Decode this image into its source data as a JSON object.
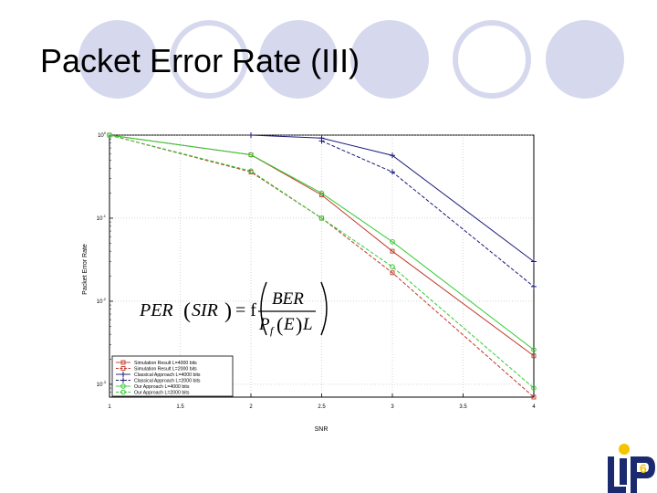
{
  "slide": {
    "title": "Packet Error Rate (III)",
    "page_number": "6",
    "logo_text": "LIP"
  },
  "colors": {
    "circle": "#d6d8ee",
    "simulation": "#c0392b",
    "classical": "#1a1a7a",
    "ours": "#33cc33"
  },
  "formula": {
    "lhs": "PER",
    "arg": "SIR",
    "eq": "= f",
    "numerator": "BER",
    "denom_p": "P",
    "denom_sub": "f",
    "denom_arg": "E",
    "denom_l": "L"
  },
  "chart_data": {
    "type": "line",
    "xlabel": "SNR",
    "ylabel": "Packet Error Rate",
    "xlim": [
      1,
      4
    ],
    "ylim": [
      0.0007,
      1
    ],
    "yscale": "log",
    "x_ticks": [
      "1",
      "1.5",
      "2",
      "2.5",
      "3",
      "3.5",
      "4"
    ],
    "y_ticks": [
      {
        "base": "10",
        "exp": "0",
        "value": 1
      },
      {
        "base": "10",
        "exp": "-1",
        "value": 0.1
      },
      {
        "base": "10",
        "exp": "-2",
        "value": 0.01
      },
      {
        "base": "10",
        "exp": "-3",
        "value": 0.001
      }
    ],
    "legend_position": "bottom-left",
    "series": [
      {
        "name": "Simulation Result L=4000 bits",
        "color": "#c0392b",
        "marker": "square",
        "dash": "solid",
        "x": [
          1,
          2,
          2.5,
          3,
          4
        ],
        "y": [
          1,
          0.58,
          0.19,
          0.04,
          0.0022
        ]
      },
      {
        "name": "Simulation Result L=2000 bits",
        "color": "#c0392b",
        "marker": "square",
        "dash": "dashed",
        "x": [
          1,
          2,
          2.5,
          3,
          4
        ],
        "y": [
          1,
          0.36,
          0.1,
          0.022,
          0.0007
        ]
      },
      {
        "name": "Classical Approach L=4000 bits",
        "color": "#1a1a7a",
        "marker": "plus",
        "dash": "solid",
        "x": [
          2,
          2.5,
          3,
          4
        ],
        "y": [
          1,
          0.92,
          0.57,
          0.03
        ]
      },
      {
        "name": "Classical Approach L=2000 bits",
        "color": "#1a1a7a",
        "marker": "plus",
        "dash": "dashed",
        "x": [
          2.5,
          3,
          4
        ],
        "y": [
          0.85,
          0.36,
          0.015
        ]
      },
      {
        "name": "Our Approach L=4000 bits",
        "color": "#33cc33",
        "marker": "circle",
        "dash": "solid",
        "x": [
          1,
          2,
          2.5,
          3,
          4
        ],
        "y": [
          1,
          0.58,
          0.2,
          0.052,
          0.0026
        ]
      },
      {
        "name": "Our Approach L=2000 bits",
        "color": "#33cc33",
        "marker": "circle",
        "dash": "dashed",
        "x": [
          1,
          2,
          2.5,
          3,
          4
        ],
        "y": [
          1,
          0.37,
          0.1,
          0.026,
          0.0009
        ]
      }
    ]
  }
}
